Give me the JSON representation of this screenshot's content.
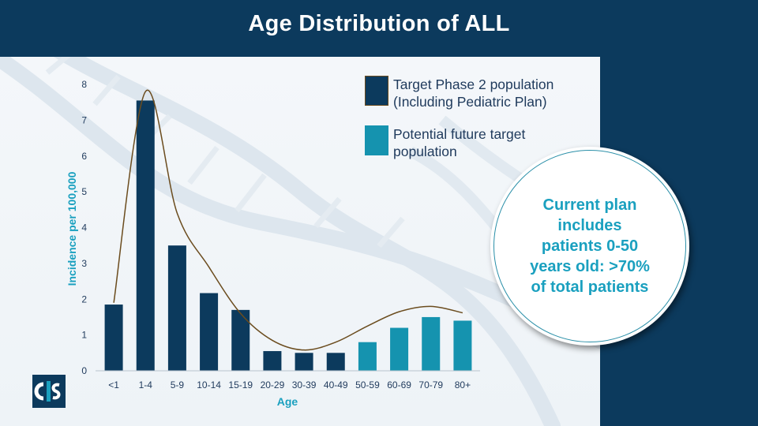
{
  "slide": {
    "title": "Age Distribution of ALL"
  },
  "colors": {
    "background": "#0c3a5d",
    "panel": "#f1f5f8",
    "target_bar": "#0c3a5d",
    "future_bar": "#1593af",
    "trend_line": "#6b4c1e",
    "axis_text": "#1f3a5c",
    "callout_text": "#1aa0bf"
  },
  "legend": {
    "items": [
      {
        "label": "Target Phase 2 population (Including Pediatric Plan)",
        "color": "#0c3a5d"
      },
      {
        "label": "Potential future target population",
        "color": "#1593af"
      }
    ]
  },
  "callout": {
    "text": "Current plan includes patients 0-50 years old: >70% of total patients"
  },
  "chart_data": {
    "type": "bar",
    "title": "",
    "xlabel": "Age",
    "ylabel": "Incidence per 100,000",
    "ylim": [
      0,
      8
    ],
    "yticks": [
      0,
      1,
      2,
      3,
      4,
      5,
      6,
      7,
      8
    ],
    "categories": [
      "<1",
      "1-4",
      "5-9",
      "10-14",
      "15-19",
      "20-29",
      "30-39",
      "40-49",
      "50-59",
      "60-69",
      "70-79",
      "80+"
    ],
    "values": [
      1.85,
      7.55,
      3.5,
      2.17,
      1.7,
      0.55,
      0.5,
      0.5,
      0.8,
      1.2,
      1.5,
      1.4
    ],
    "groups": [
      "target",
      "target",
      "target",
      "target",
      "target",
      "target",
      "target",
      "target",
      "future",
      "future",
      "future",
      "future"
    ],
    "trendline": {
      "type": "smoothed",
      "values": [
        1.9,
        7.8,
        4.4,
        2.9,
        1.6,
        0.85,
        0.58,
        0.8,
        1.25,
        1.65,
        1.8,
        1.62
      ]
    },
    "legend": [
      "Target Phase 2 population (Including Pediatric Plan)",
      "Potential future target population"
    ]
  },
  "logo": {
    "alt": "company logo"
  }
}
